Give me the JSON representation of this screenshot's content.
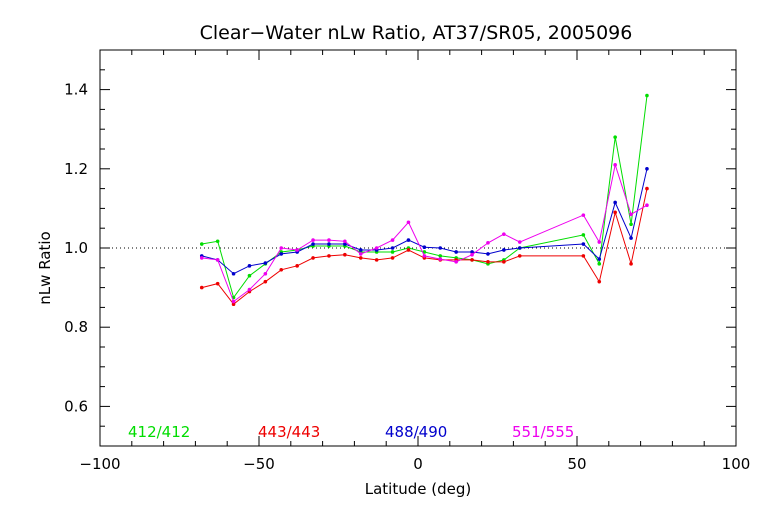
{
  "chart_data": {
    "type": "line",
    "title": "Clear−Water nLw Ratio, AT37/SR05, 2005096",
    "xlabel": "Latitude (deg)",
    "ylabel": "nLw Ratio",
    "xlim": [
      -100,
      100
    ],
    "ylim": [
      0.5,
      1.5
    ],
    "xticks": [
      -100,
      -50,
      0,
      50,
      100
    ],
    "yticks": [
      0.6,
      0.8,
      1.0,
      1.2,
      1.4
    ],
    "xtick_labels": [
      "−100",
      "−50",
      "0",
      "50",
      "100"
    ],
    "ytick_labels": [
      "0.6",
      "0.8",
      "1.0",
      "1.2",
      "1.4"
    ],
    "reference_line": 1.0,
    "grid": false,
    "legend_position": "bottom-left, inside plot",
    "series": [
      {
        "name": "412/412",
        "color": "#00dd00",
        "x": [
          -68,
          -63,
          -58,
          -53,
          -48,
          -43,
          -38,
          -33,
          -28,
          -23,
          -18,
          -13,
          -8,
          -3,
          2,
          7,
          12,
          17,
          22,
          27,
          32,
          52,
          57,
          62,
          67,
          72
        ],
        "y": [
          1.01,
          1.017,
          0.875,
          0.93,
          0.96,
          0.99,
          0.995,
          1.005,
          1.005,
          1.005,
          0.99,
          0.99,
          0.99,
          1.0,
          0.99,
          0.98,
          0.975,
          0.97,
          0.96,
          0.97,
          1.0,
          1.033,
          0.96,
          1.28,
          1.06,
          1.385
        ]
      },
      {
        "name": "443/443",
        "color": "#ee0000",
        "x": [
          -68,
          -63,
          -58,
          -53,
          -48,
          -43,
          -38,
          -33,
          -28,
          -23,
          -18,
          -13,
          -8,
          -3,
          2,
          7,
          12,
          17,
          22,
          27,
          32,
          52,
          57,
          62,
          67,
          72
        ],
        "y": [
          0.9,
          0.91,
          0.858,
          0.89,
          0.915,
          0.945,
          0.955,
          0.975,
          0.98,
          0.983,
          0.975,
          0.97,
          0.975,
          0.995,
          0.975,
          0.97,
          0.97,
          0.97,
          0.965,
          0.965,
          0.98,
          0.98,
          0.915,
          1.09,
          0.96,
          1.15
        ]
      },
      {
        "name": "488/490",
        "color": "#0000cc",
        "x": [
          -68,
          -63,
          -58,
          -53,
          -48,
          -43,
          -38,
          -33,
          -28,
          -23,
          -18,
          -13,
          -8,
          -3,
          2,
          7,
          12,
          17,
          22,
          27,
          32,
          52,
          57,
          62,
          67,
          72
        ],
        "y": [
          0.98,
          0.97,
          0.935,
          0.955,
          0.962,
          0.985,
          0.99,
          1.01,
          1.01,
          1.01,
          0.995,
          0.995,
          1.0,
          1.02,
          1.002,
          1.0,
          0.99,
          0.99,
          0.985,
          0.995,
          1.0,
          1.01,
          0.972,
          1.115,
          1.025,
          1.2
        ]
      },
      {
        "name": "551/555",
        "color": "#ee00ee",
        "x": [
          -68,
          -63,
          -58,
          -53,
          -48,
          -43,
          -38,
          -33,
          -28,
          -23,
          -18,
          -13,
          -8,
          -3,
          2,
          7,
          12,
          17,
          22,
          27,
          32,
          52,
          57,
          62,
          67,
          72
        ],
        "y": [
          0.975,
          0.97,
          0.865,
          0.895,
          0.935,
          1.0,
          0.995,
          1.02,
          1.02,
          1.017,
          0.985,
          1.0,
          1.02,
          1.065,
          0.98,
          0.972,
          0.965,
          0.983,
          1.013,
          1.035,
          1.015,
          1.083,
          1.015,
          1.21,
          1.085,
          1.108
        ]
      }
    ]
  }
}
